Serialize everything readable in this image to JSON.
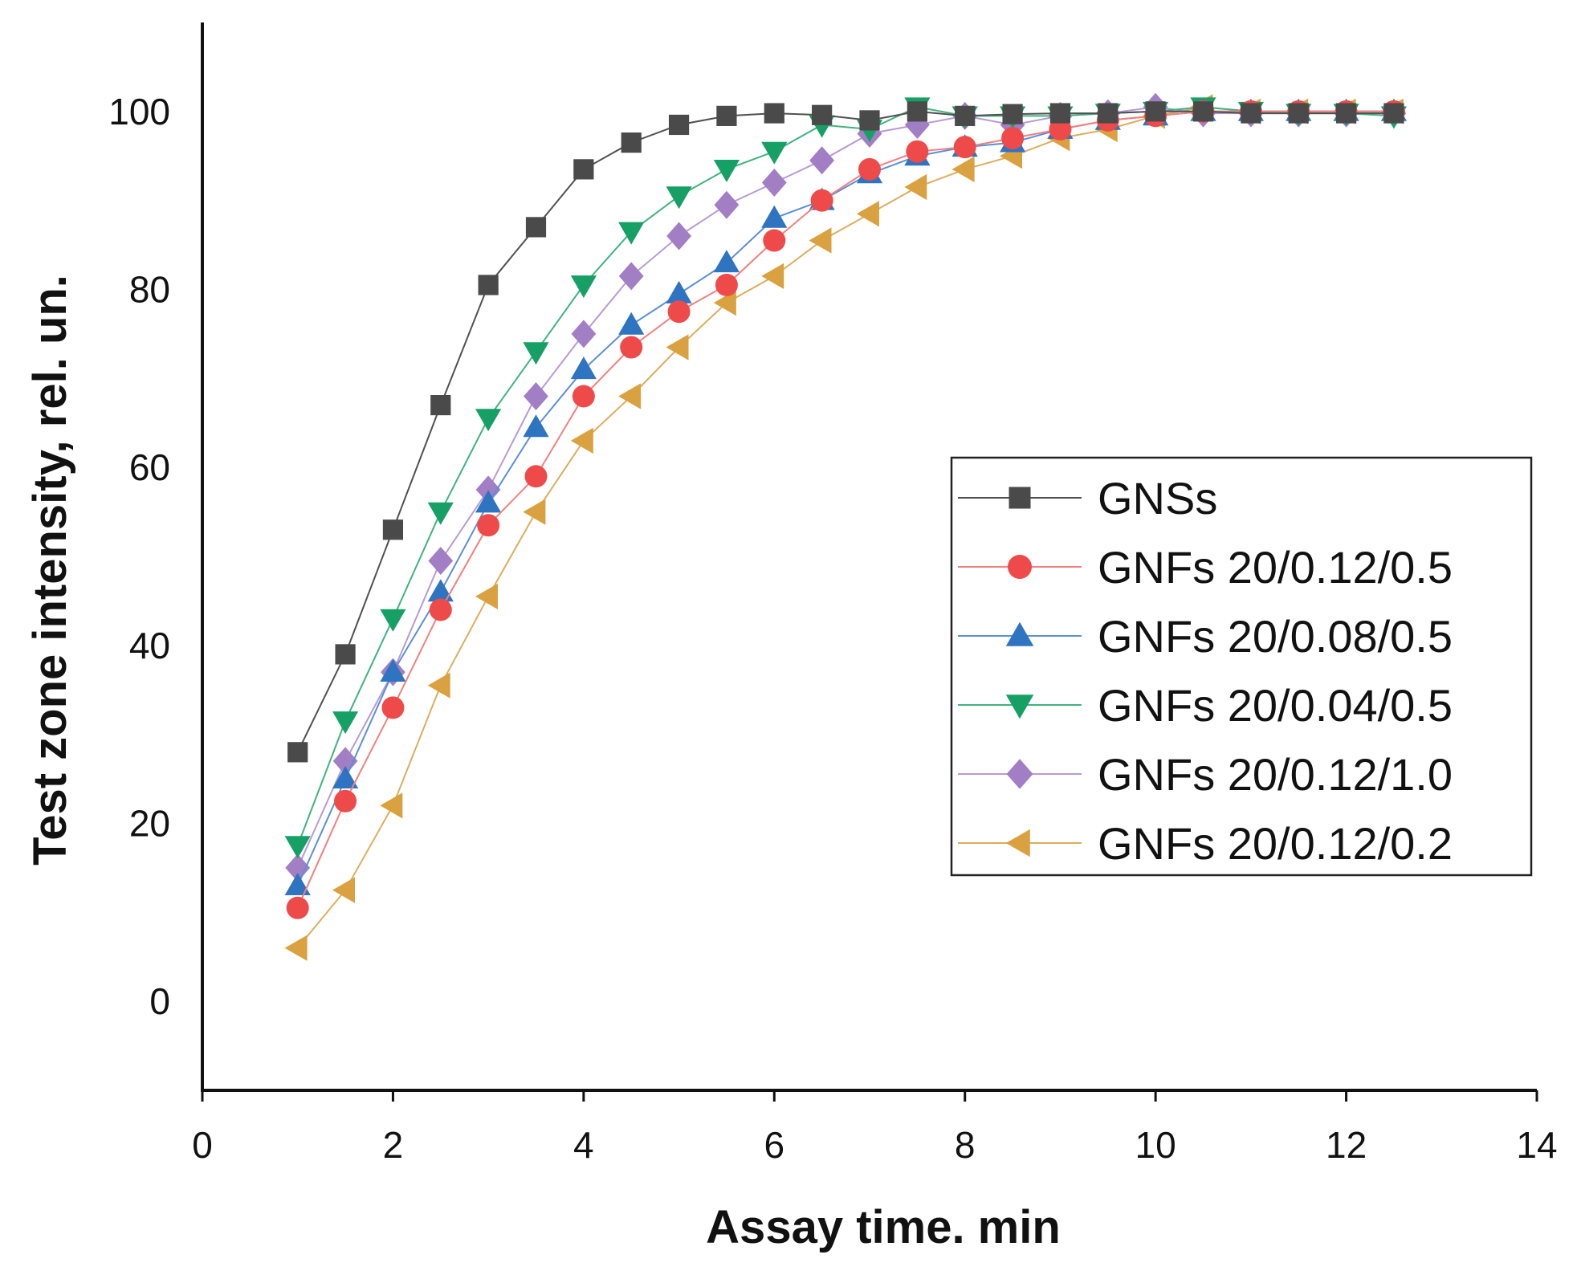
{
  "chart_data": {
    "type": "line",
    "title": "",
    "xlabel": "Assay time. min",
    "ylabel": "Test zone intensity, rel. un.",
    "xlim": [
      0,
      14
    ],
    "ylim": [
      -10,
      110
    ],
    "xticks": [
      0,
      2,
      4,
      6,
      8,
      10,
      12,
      14
    ],
    "yticks": [
      0,
      20,
      40,
      60,
      80,
      100
    ],
    "grid": false,
    "legend_position": "center-right",
    "x": [
      1,
      1.5,
      2,
      2.5,
      3,
      3.5,
      4,
      4.5,
      5,
      5.5,
      6,
      6.5,
      7,
      7.5,
      8,
      8.5,
      9,
      9.5,
      10,
      10.5,
      11,
      11.5,
      12,
      12.5
    ],
    "series": [
      {
        "name": "GNSs",
        "marker": "square",
        "marker_color": "#4a4a4a",
        "line_color": "#505050",
        "values": [
          28,
          39,
          53,
          67,
          80.5,
          87,
          93.5,
          96.5,
          98.5,
          99.5,
          99.8,
          99.6,
          99,
          100,
          99.5,
          99.7,
          99.8,
          99.8,
          100,
          100,
          99.8,
          99.8,
          99.8,
          99.8
        ]
      },
      {
        "name": "GNFs 20/0.12/0.5",
        "marker": "circle",
        "marker_color": "#ef4a4a",
        "line_color": "#f08080",
        "values": [
          10.5,
          22.5,
          33,
          44,
          53.5,
          59,
          68,
          73.5,
          77.5,
          80.5,
          85.5,
          90,
          93.5,
          95.5,
          96,
          97,
          98,
          99,
          99.5,
          100,
          100,
          100,
          100,
          100
        ]
      },
      {
        "name": "GNFs 20/0.08/0.5",
        "marker": "triangle-up",
        "marker_color": "#2f74c0",
        "line_color": "#5b8fd6",
        "values": [
          13,
          25,
          37,
          46,
          56,
          64.5,
          71,
          76,
          79.5,
          83,
          88,
          90,
          93,
          95,
          96,
          96.5,
          98,
          99,
          99.5,
          100,
          100,
          100,
          100,
          100
        ]
      },
      {
        "name": "GNFs 20/0.04/0.5",
        "marker": "triangle-down",
        "marker_color": "#17a065",
        "line_color": "#3fb37f",
        "values": [
          17.5,
          31.5,
          43,
          55,
          65.5,
          73,
          80.5,
          86.5,
          90.5,
          93.5,
          95.5,
          98.5,
          98,
          100.5,
          99.5,
          99.5,
          99.5,
          99.8,
          100,
          100.5,
          100,
          99.8,
          99.8,
          99.5
        ]
      },
      {
        "name": "GNFs 20/0.12/1.0",
        "marker": "diamond",
        "marker_color": "#a27ec5",
        "line_color": "#b79ad4",
        "values": [
          15,
          27,
          37,
          49.5,
          57.5,
          68,
          75,
          81.5,
          86,
          89.5,
          92,
          94.5,
          97.5,
          98.5,
          99.5,
          98.5,
          99.5,
          99.8,
          100.5,
          99.8,
          99.8,
          99.8,
          99.8,
          99.8
        ]
      },
      {
        "name": "GNFs 20/0.12/0.2",
        "marker": "triangle-left",
        "marker_color": "#d9a13f",
        "line_color": "#dcae5e",
        "values": [
          6,
          12.5,
          22,
          35.5,
          45.5,
          55,
          63,
          68,
          73.5,
          78.5,
          81.5,
          85.5,
          88.5,
          91.5,
          93.5,
          95,
          97,
          98,
          99.5,
          100.5,
          100,
          100,
          100,
          100
        ]
      }
    ]
  }
}
